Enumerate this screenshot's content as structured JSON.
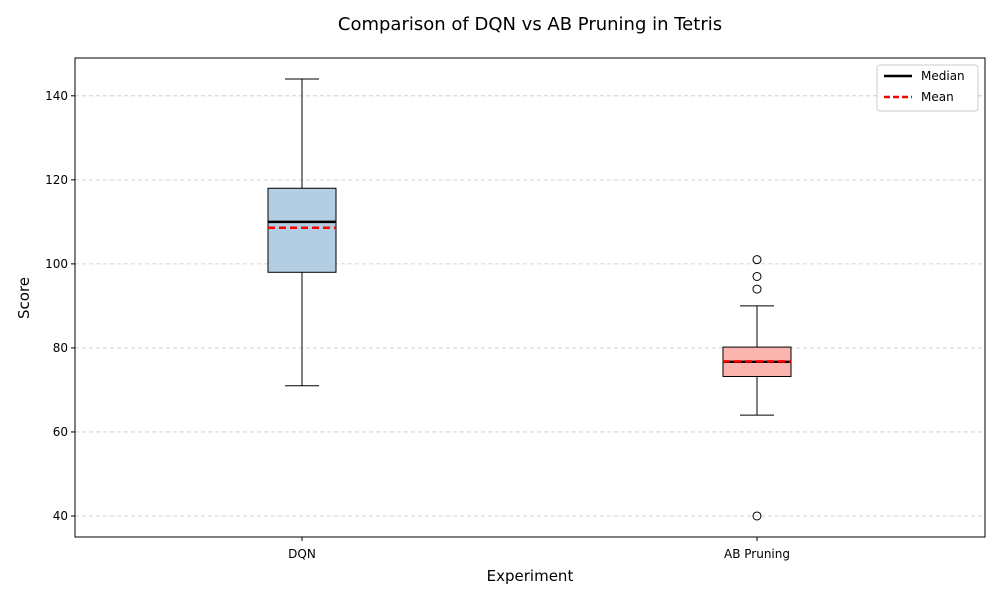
{
  "chart_data": {
    "type": "box",
    "title": "Comparison of DQN vs AB Pruning in Tetris",
    "xlabel": "Experiment",
    "ylabel": "Score",
    "ylim": [
      35,
      149
    ],
    "yticks": [
      40,
      60,
      80,
      100,
      120,
      140
    ],
    "grid": "y-dashed",
    "legend_position": "top-right",
    "legend": [
      {
        "label": "Median",
        "style": "solid",
        "color": "#000000"
      },
      {
        "label": "Mean",
        "style": "dashed",
        "color": "#ff0000"
      }
    ],
    "categories": [
      "DQN",
      "AB Pruning"
    ],
    "series": [
      {
        "category": "DQN",
        "whisker_low": 71,
        "q1": 98,
        "median": 110,
        "q3": 118,
        "whisker_high": 144,
        "mean": 108.6,
        "outliers": [],
        "fill": "#b3cde3"
      },
      {
        "category": "AB Pruning",
        "whisker_low": 64,
        "q1": 73.2,
        "median": 76.7,
        "q3": 80.2,
        "whisker_high": 90,
        "mean": 76.8,
        "outliers": [
          40,
          94,
          97,
          101
        ],
        "fill": "#fbb4ae"
      }
    ]
  }
}
